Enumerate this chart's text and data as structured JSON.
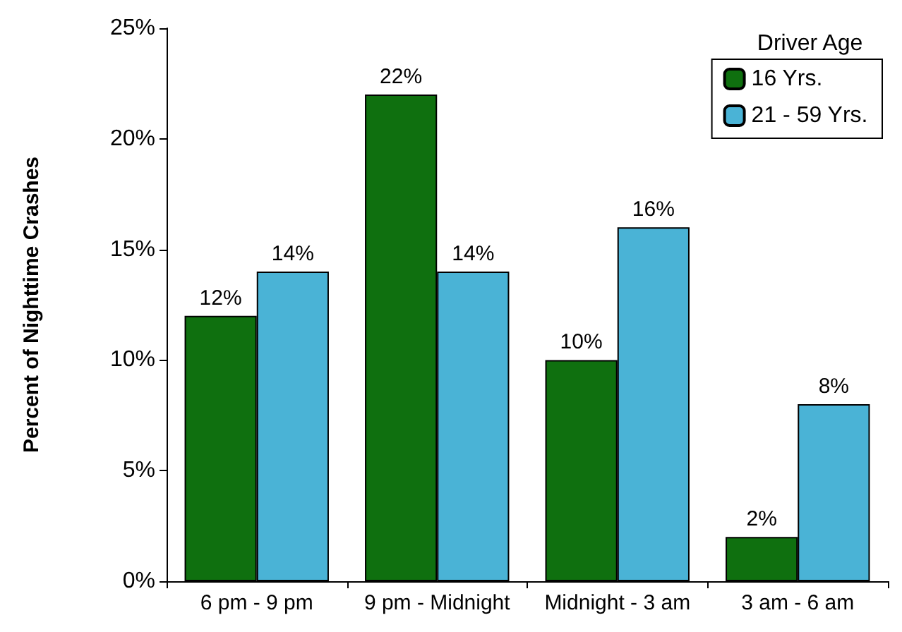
{
  "chart_data": {
    "type": "bar",
    "ylabel": "Percent of Nighttime Crashes",
    "legend_title": "Driver Age",
    "legend": "top right",
    "grid": false,
    "categories": [
      "6 pm - 9 pm",
      "9 pm - Midnight",
      "Midnight - 3 am",
      "3 am - 6 am"
    ],
    "series": [
      {
        "name": "16 Yrs.",
        "color": "#0f700f",
        "values": [
          12,
          22,
          10,
          2
        ],
        "value_labels": [
          "12%",
          "22%",
          "10%",
          "2%"
        ]
      },
      {
        "name": "21 - 59 Yrs.",
        "color": "#4ab3d6",
        "values": [
          14,
          14,
          16,
          8
        ],
        "value_labels": [
          "14%",
          "14%",
          "16%",
          "8%"
        ]
      }
    ],
    "ylim": [
      0,
      25
    ],
    "yticks": [
      {
        "value": 0,
        "label": "0%"
      },
      {
        "value": 5,
        "label": "5%"
      },
      {
        "value": 10,
        "label": "10%"
      },
      {
        "value": 15,
        "label": "15%"
      },
      {
        "value": 20,
        "label": "20%"
      },
      {
        "value": 25,
        "label": "25%"
      }
    ]
  }
}
